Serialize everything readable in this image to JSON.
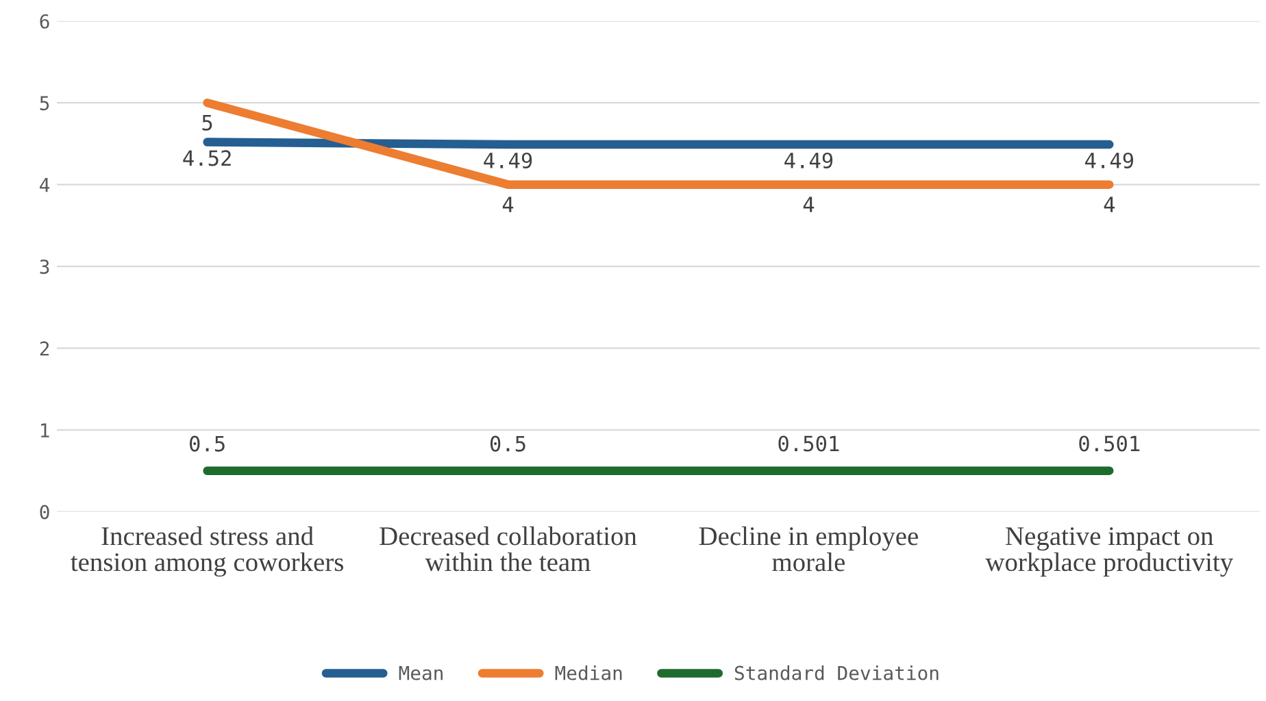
{
  "chart_data": {
    "type": "line",
    "categories": [
      "Increased stress and tension among coworkers",
      "Decreased collaboration within the team",
      "Decline in employee morale",
      "Negative impact on workplace productivity"
    ],
    "series": [
      {
        "name": "Mean",
        "color": "#255e91",
        "values": [
          4.52,
          4.49,
          4.49,
          4.49
        ]
      },
      {
        "name": "Median",
        "color": "#ed7d31",
        "values": [
          5,
          4,
          4,
          4
        ]
      },
      {
        "name": "Standard Deviation",
        "color": "#1e6b2e",
        "values": [
          0.5,
          0.5,
          0.501,
          0.501
        ]
      }
    ],
    "ylim": [
      0,
      6
    ],
    "yticks": [
      0,
      1,
      2,
      3,
      4,
      5,
      6
    ],
    "grid": "y",
    "legend": "bottom",
    "data_labels": true,
    "marker": "none",
    "line_style": "solid"
  }
}
